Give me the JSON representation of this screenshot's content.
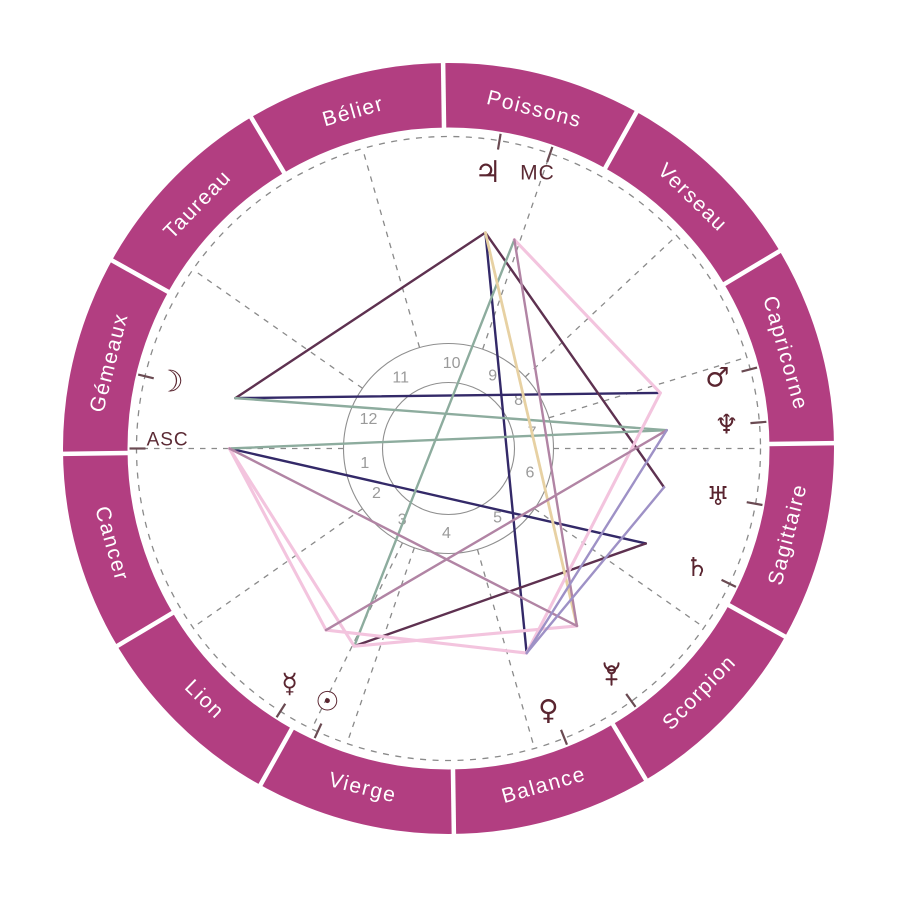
{
  "chart_data": {
    "type": "astrology-natal-wheel",
    "description_labels": {
      "midheaven": "MC",
      "ascendant": "ASC"
    },
    "zodiac_signs": [
      {
        "label": "Bélier",
        "mid_angle": 105.8
      },
      {
        "label": "Taureau",
        "mid_angle": 135.8
      },
      {
        "label": "Gémeaux",
        "mid_angle": 165.8
      },
      {
        "label": "Cancer",
        "mid_angle": 195.8
      },
      {
        "label": "Lion",
        "mid_angle": 225.8
      },
      {
        "label": "Vierge",
        "mid_angle": 255.8
      },
      {
        "label": "Balance",
        "mid_angle": 285.8
      },
      {
        "label": "Scorpion",
        "mid_angle": 315.8
      },
      {
        "label": "Sagittaire",
        "mid_angle": 345.8
      },
      {
        "label": "Capricorne",
        "mid_angle": 15.8
      },
      {
        "label": "Verseau",
        "mid_angle": 45.8
      },
      {
        "label": "Poissons",
        "mid_angle": 75.8
      }
    ],
    "boundary_start_angle": 90.8,
    "houses": [
      {
        "n": "1",
        "angle": 190.0
      },
      {
        "n": "2",
        "angle": 212.0
      },
      {
        "n": "3",
        "angle": 237.0
      },
      {
        "n": "4",
        "angle": 268.6
      },
      {
        "n": "5",
        "angle": 305.3
      },
      {
        "n": "6",
        "angle": 343.4
      },
      {
        "n": "7",
        "angle": 10.6
      },
      {
        "n": "8",
        "angle": 34.5
      },
      {
        "n": "9",
        "angle": 58.7
      },
      {
        "n": "10",
        "angle": 87.9
      },
      {
        "n": "11",
        "angle": 124.2
      },
      {
        "n": "12",
        "angle": 160.2
      }
    ],
    "cusp_angles": [
      0,
      17,
      43,
      71,
      106,
      145,
      180,
      215,
      244,
      251,
      286,
      325
    ],
    "tick_angles": [
      166.6,
      180,
      80.6,
      71,
      14.7,
      4.8,
      349.8,
      334.3,
      305.9,
      291.8,
      245.2,
      237.4
    ],
    "planets": [
      {
        "name": "moon",
        "glyph": "☽",
        "angle": 166.6,
        "r": 286,
        "size": 30
      },
      {
        "name": "jupiter",
        "glyph": "♃",
        "angle": 81.9,
        "r": 279,
        "size": 30
      },
      {
        "name": "mars",
        "glyph": "♂",
        "angle": 14.7,
        "r": 278,
        "size": 27
      },
      {
        "name": "neptune",
        "glyph": "♆",
        "angle": 4.8,
        "r": 279,
        "size": 27
      },
      {
        "name": "uranus",
        "glyph": "♅",
        "angle": 349.8,
        "r": 274,
        "size": 26
      },
      {
        "name": "saturn",
        "glyph": "♄",
        "angle": 334.3,
        "r": 276,
        "size": 26
      },
      {
        "name": "pluto",
        "glyph": "custom-pluto",
        "angle": 305.9,
        "r": 278,
        "size": 26
      },
      {
        "name": "venus",
        "glyph": "♀",
        "angle": 290.9,
        "r": 280,
        "size": 28
      },
      {
        "name": "sun",
        "glyph": "☉",
        "angle": 244.5,
        "r": 281,
        "size": 27
      },
      {
        "name": "mercury",
        "glyph": "☿",
        "angle": 236.0,
        "r": 284,
        "size": 27
      }
    ],
    "angle_labels": [
      {
        "name": "mc",
        "label": "MC",
        "angle": 72.1,
        "r": 289.5,
        "size": 21
      },
      {
        "name": "asc",
        "label": "ASC",
        "angle": 178.3,
        "r": 281,
        "size": 19
      }
    ],
    "aspect_points": {
      "moon": 166.7,
      "asc": 180,
      "mc": 72.5,
      "jupiter": 80.3,
      "mars": 14.7,
      "neptune": 4.8,
      "uranus": 349.8,
      "saturn": 334.3,
      "pluto": 305.9,
      "venus": 290.9,
      "sun": 244.5,
      "mercury": 236.0
    },
    "aspects": [
      {
        "a": "moon",
        "b": "mars",
        "color": "indigo"
      },
      {
        "a": "jupiter",
        "b": "venus",
        "color": "indigo"
      },
      {
        "a": "asc",
        "b": "saturn",
        "color": "indigo"
      },
      {
        "a": "moon",
        "b": "jupiter",
        "color": "maroon"
      },
      {
        "a": "jupiter",
        "b": "uranus",
        "color": "maroon"
      },
      {
        "a": "sun",
        "b": "saturn",
        "color": "maroon"
      },
      {
        "a": "moon",
        "b": "neptune",
        "color": "green"
      },
      {
        "a": "asc",
        "b": "neptune",
        "color": "green"
      },
      {
        "a": "mc",
        "b": "sun",
        "color": "green"
      },
      {
        "a": "jupiter",
        "b": "pluto",
        "color": "wheat"
      },
      {
        "a": "asc",
        "b": "mercury",
        "color": "pink"
      },
      {
        "a": "asc",
        "b": "sun",
        "color": "pink"
      },
      {
        "a": "mc",
        "b": "mars",
        "color": "pink"
      },
      {
        "a": "mercury",
        "b": "venus",
        "color": "pink"
      },
      {
        "a": "venus",
        "b": "mars",
        "color": "pink"
      },
      {
        "a": "sun",
        "b": "pluto",
        "color": "pink"
      },
      {
        "a": "asc",
        "b": "pluto",
        "color": "mauve"
      },
      {
        "a": "mc",
        "b": "pluto",
        "color": "mauve"
      },
      {
        "a": "mercury",
        "b": "neptune",
        "color": "mauve"
      },
      {
        "a": "uranus",
        "b": "venus",
        "color": "lavender"
      },
      {
        "a": "neptune",
        "b": "venus",
        "color": "lavender"
      }
    ],
    "colors": {
      "ring": "#b23e81",
      "ring_separator": "#ffffff",
      "sign_text": "#ffffff",
      "glyph": "#5a2530",
      "angle_text": "#5b2a34",
      "house_number": "#9a9a9a",
      "circle_stroke": "#8f8f8f",
      "dash_stroke": "#8a8a8a",
      "tick_stroke": "#6a4a52",
      "indigo": "#332968",
      "maroon": "#5e3150",
      "green": "#8dac9e",
      "wheat": "#e7d1a3",
      "pink": "#f3c4de",
      "mauve": "#b184a4",
      "lavender": "#9e91c6"
    }
  }
}
